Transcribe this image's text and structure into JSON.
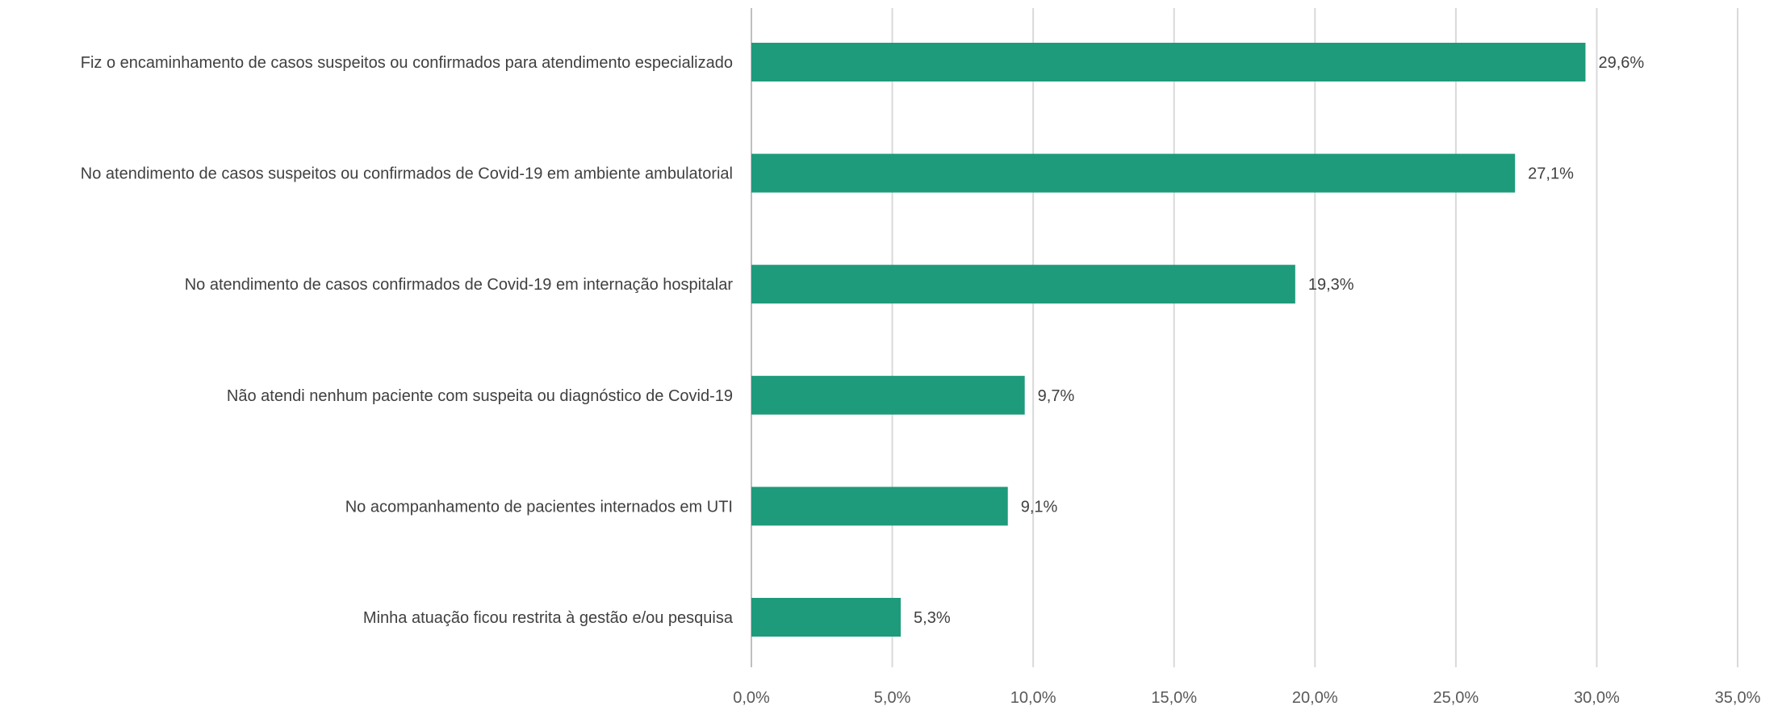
{
  "chart_data": {
    "type": "bar",
    "orientation": "horizontal",
    "categories": [
      "Fiz o encaminhamento de casos suspeitos ou confirmados para atendimento especializado",
      "No atendimento de casos suspeitos ou confirmados de Covid-19 em ambiente ambulatorial",
      "No atendimento de casos confirmados de Covid-19 em internação hospitalar",
      "Não atendi nenhum paciente com suspeita ou diagnóstico de Covid-19",
      "No acompanhamento de pacientes internados em UTI",
      "Minha atuação ficou restrita à gestão e/ou pesquisa"
    ],
    "values": [
      29.6,
      27.1,
      19.3,
      9.7,
      9.1,
      5.3
    ],
    "value_labels": [
      "29,6%",
      "27,1%",
      "19,3%",
      "9,7%",
      "9,1%",
      "5,3%"
    ],
    "xlim": [
      0,
      35
    ],
    "x_ticks": [
      0,
      5,
      10,
      15,
      20,
      25,
      30,
      35
    ],
    "x_tick_labels": [
      "0,0%",
      "5,0%",
      "10,0%",
      "15,0%",
      "20,0%",
      "25,0%",
      "30,0%",
      "35,0%"
    ],
    "grid": true,
    "bar_color": "#1e9b7b"
  }
}
